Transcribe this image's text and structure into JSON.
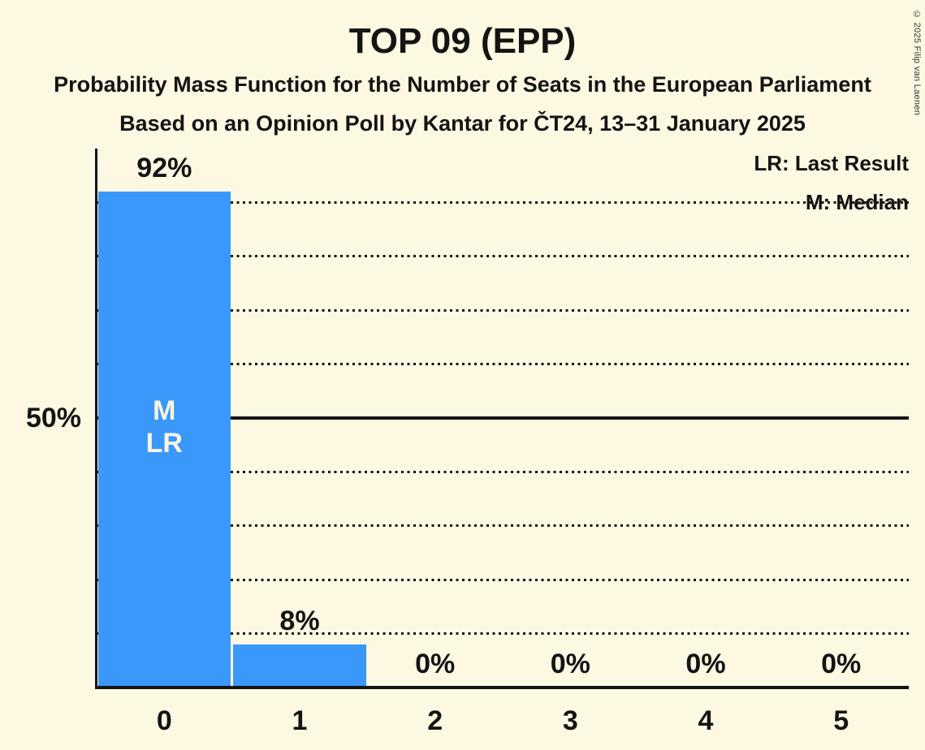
{
  "title": "TOP 09 (EPP)",
  "subtitle1": "Probability Mass Function for the Number of Seats in the European Parliament",
  "subtitle2": "Based on an Opinion Poll by Kantar for ČT24, 13–31 January 2025",
  "legend": {
    "last_result": "LR: Last Result",
    "median": "M: Median"
  },
  "y_axis_label": "50%",
  "copyright": "© 2025 Filip van Laenen",
  "colors": {
    "background": "#FDF8E2",
    "bar": "#3998FA",
    "ink": "#141414",
    "bar_label_text": "#FAF5DF"
  },
  "chart_data": {
    "type": "bar",
    "title": "TOP 09 (EPP)",
    "categories": [
      "0",
      "1",
      "2",
      "3",
      "4",
      "5"
    ],
    "values": [
      92,
      8,
      0,
      0,
      0,
      0
    ],
    "value_labels": [
      "92%",
      "8%",
      "0%",
      "0%",
      "0%",
      "0%"
    ],
    "ylim": [
      0,
      100
    ],
    "gridlines_percent": [
      10,
      20,
      30,
      40,
      50,
      60,
      70,
      80,
      90
    ],
    "solid_line_percent": 50,
    "bar_annotations": [
      {
        "index": 0,
        "lines": [
          "M",
          "LR"
        ]
      }
    ],
    "legend_position": "top-right",
    "grid": "dotted-horizontal"
  }
}
